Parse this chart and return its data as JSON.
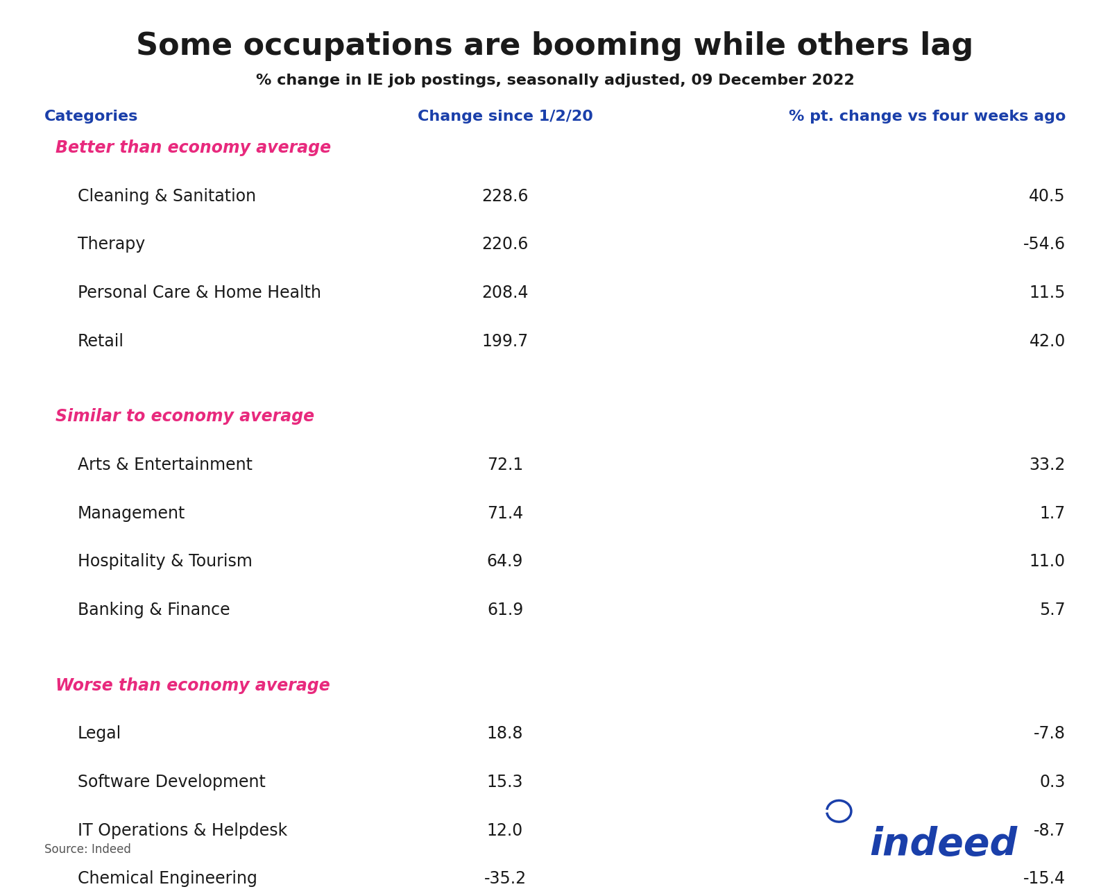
{
  "title": "Some occupations are booming while others lag",
  "subtitle": "% change in IE job postings, seasonally adjusted, 09 December 2022",
  "col_headers": [
    "Categories",
    "Change since 1/2/20",
    "% pt. change vs four weeks ago"
  ],
  "header_color": "#1a3faa",
  "source": "Source: Indeed",
  "sections": [
    {
      "label": "Better than economy average",
      "label_color": "#e8297d",
      "rows": [
        {
          "category": "Cleaning & Sanitation",
          "change": "228.6",
          "pt_change": "40.5"
        },
        {
          "category": "Therapy",
          "change": "220.6",
          "pt_change": "-54.6"
        },
        {
          "category": "Personal Care & Home Health",
          "change": "208.4",
          "pt_change": "11.5"
        },
        {
          "category": "Retail",
          "change": "199.7",
          "pt_change": "42.0"
        }
      ]
    },
    {
      "label": "Similar to economy average",
      "label_color": "#e8297d",
      "rows": [
        {
          "category": "Arts & Entertainment",
          "change": "72.1",
          "pt_change": "33.2"
        },
        {
          "category": "Management",
          "change": "71.4",
          "pt_change": "1.7"
        },
        {
          "category": "Hospitality & Tourism",
          "change": "64.9",
          "pt_change": "11.0"
        },
        {
          "category": "Banking & Finance",
          "change": "61.9",
          "pt_change": "5.7"
        }
      ]
    },
    {
      "label": "Worse than economy average",
      "label_color": "#e8297d",
      "rows": [
        {
          "category": "Legal",
          "change": "18.8",
          "pt_change": "-7.8"
        },
        {
          "category": "Software Development",
          "change": "15.3",
          "pt_change": "0.3"
        },
        {
          "category": "IT Operations & Helpdesk",
          "change": "12.0",
          "pt_change": "-8.7"
        },
        {
          "category": "Chemical Engineering",
          "change": "-35.2",
          "pt_change": "-15.4"
        }
      ]
    }
  ],
  "row_bg_light": "#e8e8e8",
  "row_bg_dark": "#d4d4d4",
  "section_header_bg": "#e0e0e0",
  "background_color": "#ffffff",
  "title_fontsize": 32,
  "subtitle_fontsize": 16,
  "header_fontsize": 16,
  "section_label_fontsize": 17,
  "row_fontsize": 17,
  "indeed_color": "#1a3faa"
}
